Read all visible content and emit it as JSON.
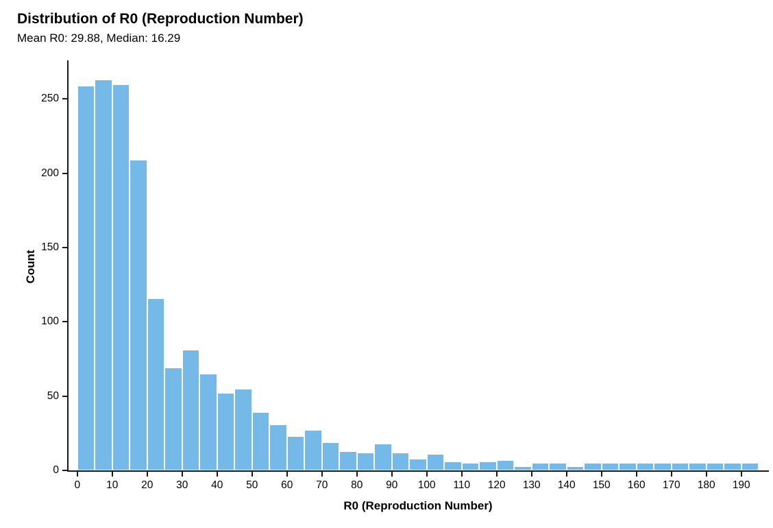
{
  "chart_data": {
    "type": "bar",
    "title": "Distribution of R0 (Reproduction Number)",
    "subtitle": "Mean R0: 29.88, Median: 16.29",
    "xlabel": "R0 (Reproduction Number)",
    "ylabel": "Count",
    "bin_width": 5,
    "bin_starts": [
      0,
      5,
      10,
      15,
      20,
      25,
      30,
      35,
      40,
      45,
      50,
      55,
      60,
      65,
      70,
      75,
      80,
      85,
      90,
      95,
      100,
      105,
      110,
      115,
      120,
      125,
      130,
      135,
      140,
      145,
      150,
      155,
      160,
      165,
      170,
      175,
      180,
      185,
      190
    ],
    "values": [
      259,
      263,
      260,
      209,
      116,
      69,
      81,
      65,
      52,
      55,
      39,
      31,
      23,
      27,
      19,
      13,
      12,
      18,
      12,
      8,
      11,
      6,
      5,
      6,
      7,
      3,
      5,
      5,
      3,
      5,
      5,
      5,
      5,
      5,
      5,
      5,
      5,
      5,
      5
    ],
    "x_ticks": [
      0,
      10,
      20,
      30,
      40,
      50,
      60,
      70,
      80,
      90,
      100,
      110,
      120,
      130,
      140,
      150,
      160,
      170,
      180,
      190
    ],
    "y_ticks": [
      0,
      50,
      100,
      150,
      200,
      250
    ],
    "xlim": [
      -2.5,
      197.5
    ],
    "ylim": [
      0,
      275
    ],
    "grid": false,
    "legend": false,
    "bar_color": "#74B9E7",
    "bar_edge_color": "#FFFFFF",
    "axis_color": "#1A1A1A"
  },
  "stats": {
    "mean_r0": "29.88",
    "median_r0": "16.29"
  }
}
